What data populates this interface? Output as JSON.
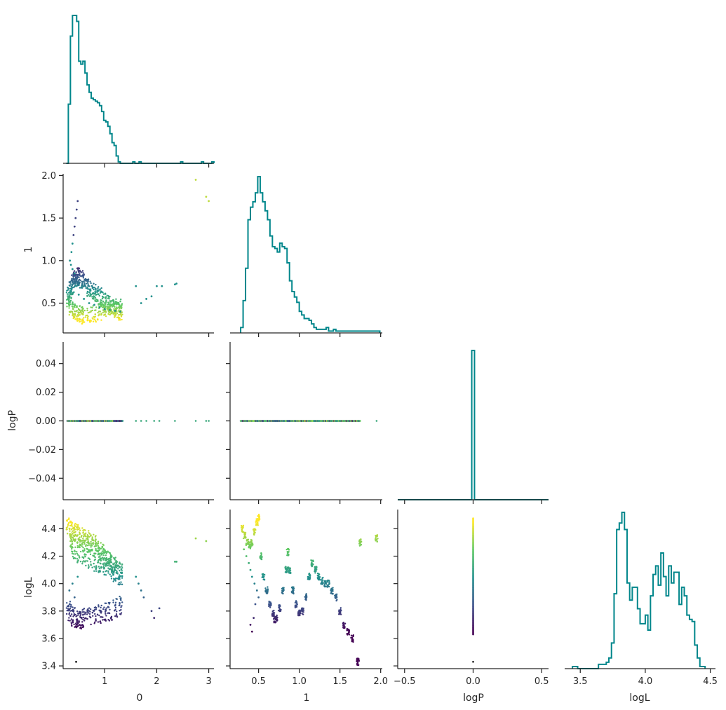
{
  "chart_data": {
    "type": "scatter",
    "title": "",
    "layout": "corner-pairplot",
    "variables": [
      "0",
      "1",
      "logP",
      "logL"
    ],
    "hist_color": "#00868b",
    "colormap": "viridis",
    "grid": false,
    "axes": {
      "0": {
        "range": [
          0.2,
          3.1
        ],
        "ticks": [
          1,
          2,
          3
        ],
        "tick_labels": [
          "1",
          "2",
          "3"
        ]
      },
      "1": {
        "range": [
          0.15,
          2.02
        ],
        "ticks": [
          0.5,
          1.0,
          1.5,
          2.0
        ],
        "tick_labels": [
          "0.5",
          "1.0",
          "1.5",
          "2.0"
        ]
      },
      "logP": {
        "range": [
          -0.055,
          0.055
        ],
        "ticks": [
          -0.04,
          -0.02,
          0.0,
          0.02,
          0.04
        ],
        "tick_labels": [
          "−0.04",
          "−0.02",
          "0.00",
          "0.02",
          "0.04"
        ]
      },
      "logPx": {
        "range": [
          -0.55,
          0.55
        ],
        "ticks": [
          -0.5,
          0.0,
          0.5
        ],
        "tick_labels": [
          "−0.5",
          "0.0",
          "0.5"
        ]
      },
      "logL": {
        "range": [
          3.38,
          4.54
        ],
        "ticks": [
          3.4,
          3.6,
          3.8,
          4.0,
          4.2,
          4.4
        ],
        "tick_labels": [
          "3.4",
          "3.6",
          "3.8",
          "4.0",
          "4.2",
          "4.4"
        ],
        "xticks": [
          3.5,
          4.0,
          4.5
        ],
        "xtick_labels": [
          "3.5",
          "4.0",
          "4.5"
        ]
      }
    },
    "histograms": {
      "0": {
        "bin_edges_start": 0.26,
        "bin_width": 0.04,
        "counts": [
          0,
          40,
          86,
          100,
          100,
          96,
          69,
          67,
          69,
          61,
          53,
          48,
          44,
          43,
          42,
          41,
          39,
          35,
          29,
          28,
          25,
          20,
          14,
          12,
          5,
          1,
          0,
          0,
          0,
          0,
          0,
          0,
          1,
          0,
          0,
          1,
          0,
          0,
          0,
          0,
          0,
          0,
          0,
          0,
          0,
          0,
          0,
          0,
          0,
          0,
          0,
          0,
          0,
          0,
          0,
          1,
          0,
          0,
          0,
          0,
          0,
          0,
          0,
          0,
          0,
          1,
          0,
          0,
          0,
          0,
          1
        ]
      },
      "1": {
        "bin_edges_start": 0.28,
        "bin_width": 0.03,
        "counts": [
          3,
          18,
          36,
          63,
          70,
          73,
          78,
          87,
          78,
          73,
          68,
          63,
          54,
          48,
          47,
          45,
          50,
          48,
          47,
          39,
          29,
          23,
          20,
          17,
          12,
          10,
          8,
          8,
          7,
          5,
          3,
          2,
          2,
          2,
          2,
          3,
          1,
          1,
          2,
          1,
          1,
          1,
          1,
          1,
          1,
          1,
          1,
          1,
          1,
          1,
          1,
          1,
          1,
          1,
          1,
          1,
          1
        ]
      },
      "logP": {
        "bin_edges": [
          -0.01,
          0.01
        ],
        "counts_relative": [
          1.0
        ]
      },
      "logL": {
        "bin_edges_start": 3.44,
        "bin_width": 0.02,
        "counts": [
          1,
          1,
          0,
          0,
          0,
          0,
          0,
          0,
          0,
          0,
          2,
          2,
          2,
          3,
          5,
          12,
          35,
          65,
          68,
          73,
          65,
          40,
          32,
          38,
          38,
          28,
          21,
          21,
          25,
          18,
          34,
          44,
          48,
          39,
          54,
          43,
          34,
          48,
          40,
          45,
          45,
          30,
          38,
          34,
          25,
          23,
          22,
          11,
          5,
          1,
          1
        ]
      }
    },
    "scatter_0_vs_1": {
      "x": [
        0.3,
        0.32,
        0.35,
        0.38,
        0.4,
        0.42,
        0.45,
        0.48,
        0.5,
        0.55,
        0.6,
        0.65,
        0.7,
        0.75,
        0.8,
        0.85,
        0.9,
        0.95,
        1.0,
        1.05,
        1.1,
        1.15,
        1.2,
        1.25,
        1.3,
        0.35,
        0.4,
        0.45,
        0.5,
        0.55,
        0.6,
        0.7,
        0.8,
        0.9,
        1.0,
        1.1,
        1.2,
        1.3,
        0.33,
        0.36,
        0.38,
        0.4,
        0.42,
        0.44,
        0.46,
        0.48,
        0.35,
        0.38,
        0.42,
        0.45,
        0.5,
        0.6,
        0.7,
        0.8,
        0.9,
        1.0,
        1.1,
        1.2,
        1.3,
        1.6,
        1.7,
        1.8,
        1.9,
        2.0,
        2.1,
        2.35,
        2.38,
        2.75,
        2.95,
        3.0
      ],
      "y": [
        0.55,
        0.6,
        0.65,
        0.7,
        0.75,
        0.78,
        0.8,
        0.82,
        0.8,
        0.78,
        0.75,
        0.72,
        0.68,
        0.65,
        0.62,
        0.6,
        0.58,
        0.55,
        0.52,
        0.5,
        0.48,
        0.45,
        0.43,
        0.42,
        0.4,
        0.45,
        0.42,
        0.4,
        0.38,
        0.36,
        0.35,
        0.36,
        0.38,
        0.4,
        0.42,
        0.44,
        0.45,
        0.46,
        1.0,
        1.1,
        1.2,
        1.3,
        1.4,
        1.5,
        1.6,
        1.7,
        0.95,
        0.9,
        0.85,
        0.7,
        0.6,
        0.55,
        0.5,
        0.48,
        0.45,
        0.43,
        0.42,
        0.41,
        0.4,
        0.7,
        0.5,
        0.55,
        0.58,
        0.7,
        0.7,
        0.72,
        0.73,
        1.95,
        1.75,
        1.7
      ]
    },
    "scatter_0_vs_logL": {
      "x": [
        0.3,
        0.35,
        0.4,
        0.45,
        0.5,
        0.55,
        0.6,
        0.65,
        0.7,
        0.75,
        0.8,
        0.85,
        0.9,
        0.95,
        1.0,
        1.05,
        1.1,
        1.15,
        1.2,
        1.25,
        1.3,
        0.35,
        0.4,
        0.5,
        0.6,
        0.7,
        0.8,
        0.9,
        1.0,
        1.1,
        1.2,
        1.3,
        0.3,
        0.35,
        0.4,
        0.45,
        0.5,
        0.55,
        0.6,
        0.7,
        0.8,
        0.9,
        1.0,
        1.1,
        1.2,
        1.3,
        0.32,
        0.38,
        0.42,
        0.48,
        1.6,
        1.65,
        1.7,
        1.75,
        1.9,
        1.95,
        2.05,
        2.35,
        2.38,
        2.75,
        2.95,
        0.45
      ],
      "y": [
        4.42,
        4.4,
        4.38,
        4.37,
        4.36,
        4.34,
        4.33,
        4.32,
        4.31,
        4.3,
        4.28,
        4.26,
        4.24,
        4.22,
        4.2,
        4.18,
        4.16,
        4.14,
        4.12,
        4.1,
        4.08,
        4.3,
        4.25,
        4.22,
        4.2,
        4.18,
        4.16,
        4.14,
        4.12,
        4.1,
        4.08,
        4.06,
        3.8,
        3.78,
        3.76,
        3.75,
        3.74,
        3.74,
        3.75,
        3.76,
        3.77,
        3.78,
        3.79,
        3.8,
        3.82,
        3.84,
        3.95,
        4.0,
        3.9,
        4.05,
        4.05,
        4.0,
        3.95,
        3.9,
        3.8,
        3.75,
        3.82,
        4.16,
        4.16,
        4.33,
        4.31,
        3.43
      ]
    },
    "scatter_1_vs_logL": {
      "x": [
        0.3,
        0.33,
        0.36,
        0.39,
        0.42,
        0.45,
        0.48,
        0.5,
        0.53,
        0.56,
        0.6,
        0.64,
        0.68,
        0.7,
        0.72,
        0.76,
        0.8,
        0.84,
        0.86,
        0.88,
        0.92,
        0.96,
        1.0,
        1.04,
        1.08,
        1.12,
        1.16,
        1.2,
        1.24,
        1.28,
        1.32,
        1.36,
        1.4,
        1.45,
        1.5,
        1.55,
        1.6,
        1.65,
        1.72,
        1.75,
        1.95,
        0.32,
        0.35,
        0.38,
        0.4,
        0.42,
        0.45,
        0.48,
        0.5,
        0.4,
        0.42,
        0.44,
        0.46
      ],
      "y": [
        4.4,
        4.35,
        4.3,
        4.28,
        4.3,
        4.38,
        4.45,
        4.48,
        4.2,
        4.05,
        3.95,
        3.85,
        3.78,
        3.74,
        3.75,
        3.82,
        3.95,
        4.1,
        4.23,
        4.1,
        3.95,
        3.85,
        3.79,
        3.8,
        3.9,
        4.05,
        4.15,
        4.1,
        4.05,
        4.02,
        4.0,
        4.0,
        3.95,
        3.9,
        3.8,
        3.7,
        3.65,
        3.6,
        3.43,
        4.3,
        4.33,
        4.25,
        4.2,
        4.15,
        4.1,
        4.05,
        4.0,
        3.95,
        3.9,
        3.7,
        3.65,
        3.75,
        3.85
      ]
    },
    "scatter_logP_vs_logL": {
      "x": [
        0.0
      ],
      "y_range": [
        3.63,
        4.48
      ],
      "outlier_y": 3.43
    },
    "scatter_0_vs_logP": {
      "x_range": [
        0.28,
        1.35
      ],
      "sparse_x": [
        1.6,
        1.7,
        1.8,
        1.95,
        2.05,
        2.35,
        2.75,
        2.95,
        3.0
      ],
      "y": 0.0
    },
    "scatter_1_vs_logP": {
      "x_range": [
        0.28,
        1.75
      ],
      "sparse_x": [
        1.35,
        1.4,
        1.45,
        1.5,
        1.55,
        1.6,
        1.72,
        1.95
      ],
      "y": 0.0
    }
  }
}
